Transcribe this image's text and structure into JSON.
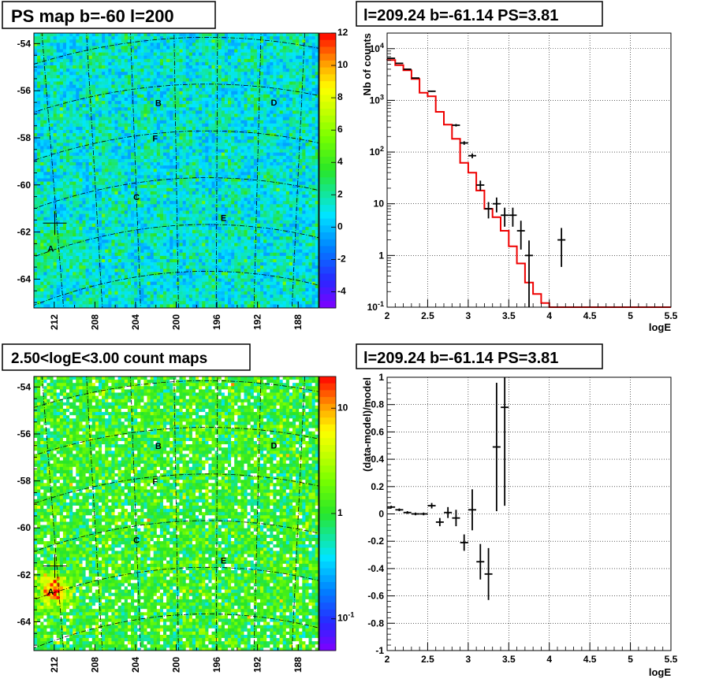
{
  "colors": {
    "frame": "#000000",
    "model_line": "#ee0000",
    "grid": "#000000"
  },
  "chart_data": [
    {
      "type": "heatmap",
      "title": "PS map b=-60 l=200",
      "x_ticks": [
        "212",
        "208",
        "204",
        "200",
        "196",
        "192",
        "188"
      ],
      "y_ticks": [
        "-54",
        "-56",
        "-58",
        "-60",
        "-62",
        "-64"
      ],
      "colorbar": {
        "scale": "linear",
        "range": [
          -5,
          12
        ],
        "ticks": [
          "12",
          "10",
          "8",
          "6",
          "4",
          "2",
          "0",
          "-2",
          "-4"
        ]
      },
      "sources": [
        {
          "label": "A",
          "l": 212.8,
          "b": -61.9
        },
        {
          "label": "B",
          "l": 201.6,
          "b": -56.7
        },
        {
          "label": "C",
          "l": 204.0,
          "b": -60.6
        },
        {
          "label": "D",
          "l": 190.6,
          "b": -56.6
        },
        {
          "label": "E",
          "l": 195.3,
          "b": -61.7
        },
        {
          "label": "F",
          "l": 202.0,
          "b": -58.2
        }
      ],
      "marker": {
        "l": 212.2,
        "b": -60.9
      }
    },
    {
      "type": "line",
      "title": "l=209.24 b=-61.14 PS=3.81",
      "xlabel": "logE",
      "ylabel": "Nb of counts",
      "xlim": [
        2,
        5.5
      ],
      "ylim": [
        0.1,
        20000
      ],
      "yscale": "log",
      "grid": true,
      "x_ticks": [
        "2",
        "2.5",
        "3",
        "3.5",
        "4",
        "4.5",
        "5",
        "5.5"
      ],
      "y_ticks": [
        "10^-1",
        "1",
        "10",
        "10^2",
        "10^3",
        "10^4"
      ],
      "data_points": [
        {
          "x": 2.05,
          "y": 6500,
          "err": 80
        },
        {
          "x": 2.15,
          "y": 5200,
          "err": 70
        },
        {
          "x": 2.25,
          "y": 4000,
          "err": 60
        },
        {
          "x": 2.35,
          "y": 2700,
          "err": 50
        },
        {
          "x": 2.55,
          "y": 1500,
          "err": 40
        },
        {
          "x": 2.85,
          "y": 330,
          "err": 18
        },
        {
          "x": 2.95,
          "y": 150,
          "err": 12
        },
        {
          "x": 3.05,
          "y": 85,
          "err": 9
        },
        {
          "x": 3.15,
          "y": 23,
          "err": 5
        },
        {
          "x": 3.25,
          "y": 8,
          "err": 2.8
        },
        {
          "x": 3.35,
          "y": 10,
          "err": 3.2
        },
        {
          "x": 3.45,
          "y": 6,
          "err": 2.4
        },
        {
          "x": 3.55,
          "y": 6,
          "err": 2.4
        },
        {
          "x": 3.65,
          "y": 3,
          "err": 1.7
        },
        {
          "x": 3.75,
          "y": 1,
          "err": 0.95
        },
        {
          "x": 4.15,
          "y": 2,
          "err": 1.4
        }
      ],
      "model_step": {
        "edges": [
          2.0,
          2.1,
          2.2,
          2.3,
          2.4,
          2.5,
          2.6,
          2.7,
          2.8,
          2.9,
          3.0,
          3.1,
          3.2,
          3.3,
          3.4,
          3.5,
          3.6,
          3.7,
          3.8,
          3.9,
          4.0,
          5.5
        ],
        "values": [
          6000,
          4800,
          3800,
          2600,
          1400,
          1200,
          600,
          340,
          180,
          62,
          40,
          18,
          8,
          5.5,
          3,
          1.5,
          0.7,
          0.3,
          0.18,
          0.12,
          0.1
        ]
      }
    },
    {
      "type": "heatmap",
      "title": "2.50<logE<3.00 count maps",
      "x_ticks": [
        "212",
        "208",
        "204",
        "200",
        "196",
        "192",
        "188"
      ],
      "y_ticks": [
        "-54",
        "-56",
        "-58",
        "-60",
        "-62",
        "-64"
      ],
      "colorbar": {
        "scale": "log",
        "range": [
          0.05,
          20
        ],
        "ticks": [
          "10",
          "1",
          "10^-1"
        ]
      },
      "sources": [
        {
          "label": "A",
          "l": 212.8,
          "b": -61.9
        },
        {
          "label": "B",
          "l": 201.6,
          "b": -56.7
        },
        {
          "label": "C",
          "l": 204.0,
          "b": -60.6
        },
        {
          "label": "D",
          "l": 190.6,
          "b": -56.6
        },
        {
          "label": "E",
          "l": 195.3,
          "b": -61.7
        },
        {
          "label": "F",
          "l": 202.0,
          "b": -58.2
        }
      ],
      "marker": {
        "l": 212.2,
        "b": -60.9
      }
    },
    {
      "type": "scatter",
      "title": "l=209.24 b=-61.14 PS=3.81",
      "xlabel": "logE",
      "ylabel": "(data-model)/model",
      "xlim": [
        2,
        5.5
      ],
      "ylim": [
        -1,
        1
      ],
      "grid": true,
      "x_ticks": [
        "2",
        "2.5",
        "3",
        "3.5",
        "4",
        "4.5",
        "5",
        "5.5"
      ],
      "y_ticks": [
        "1",
        "0.8",
        "0.6",
        "0.4",
        "0.2",
        "0",
        "-0.2",
        "-0.4",
        "-0.6",
        "-0.8",
        "-1"
      ],
      "points": [
        {
          "x": 2.05,
          "y": 0.05,
          "err": 0.01
        },
        {
          "x": 2.15,
          "y": 0.03,
          "err": 0.01
        },
        {
          "x": 2.25,
          "y": 0.01,
          "err": 0.01
        },
        {
          "x": 2.35,
          "y": 0.0,
          "err": 0.01
        },
        {
          "x": 2.45,
          "y": 0.0,
          "err": 0.01
        },
        {
          "x": 2.55,
          "y": 0.06,
          "err": 0.02
        },
        {
          "x": 2.65,
          "y": -0.06,
          "err": 0.03
        },
        {
          "x": 2.75,
          "y": 0.01,
          "err": 0.04
        },
        {
          "x": 2.85,
          "y": -0.03,
          "err": 0.06
        },
        {
          "x": 2.95,
          "y": -0.21,
          "err": 0.06
        },
        {
          "x": 3.05,
          "y": 0.03,
          "err": 0.15
        },
        {
          "x": 3.15,
          "y": -0.35,
          "err": 0.13
        },
        {
          "x": 3.25,
          "y": -0.44,
          "err": 0.19
        },
        {
          "x": 3.35,
          "y": 0.49,
          "err": 0.47
        },
        {
          "x": 3.45,
          "y": 0.78,
          "err": 0.72
        }
      ]
    }
  ]
}
